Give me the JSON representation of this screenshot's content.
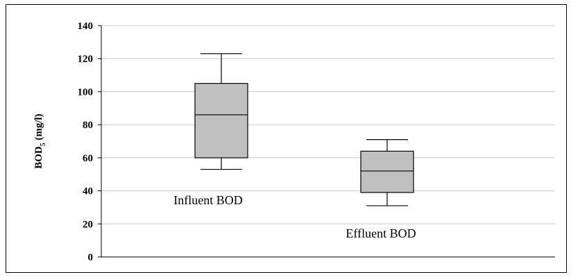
{
  "chart_data": {
    "type": "box",
    "title": "",
    "xlabel": "",
    "ylabel": {
      "main": "BOD",
      "sub": "5",
      "unit": " (mg/l)"
    },
    "ylim": [
      0,
      140
    ],
    "yticks": [
      0,
      20,
      40,
      60,
      80,
      100,
      120,
      140
    ],
    "grid": true,
    "legend": "none",
    "box_fill": "#c0c0c0",
    "boxes": [
      {
        "label": "Influent BOD",
        "min": 53,
        "q1": 60,
        "median": 86,
        "q3": 105,
        "max": 123
      },
      {
        "label": "Effluent BOD",
        "min": 31,
        "q1": 39,
        "median": 52,
        "q3": 64,
        "max": 71
      }
    ]
  }
}
